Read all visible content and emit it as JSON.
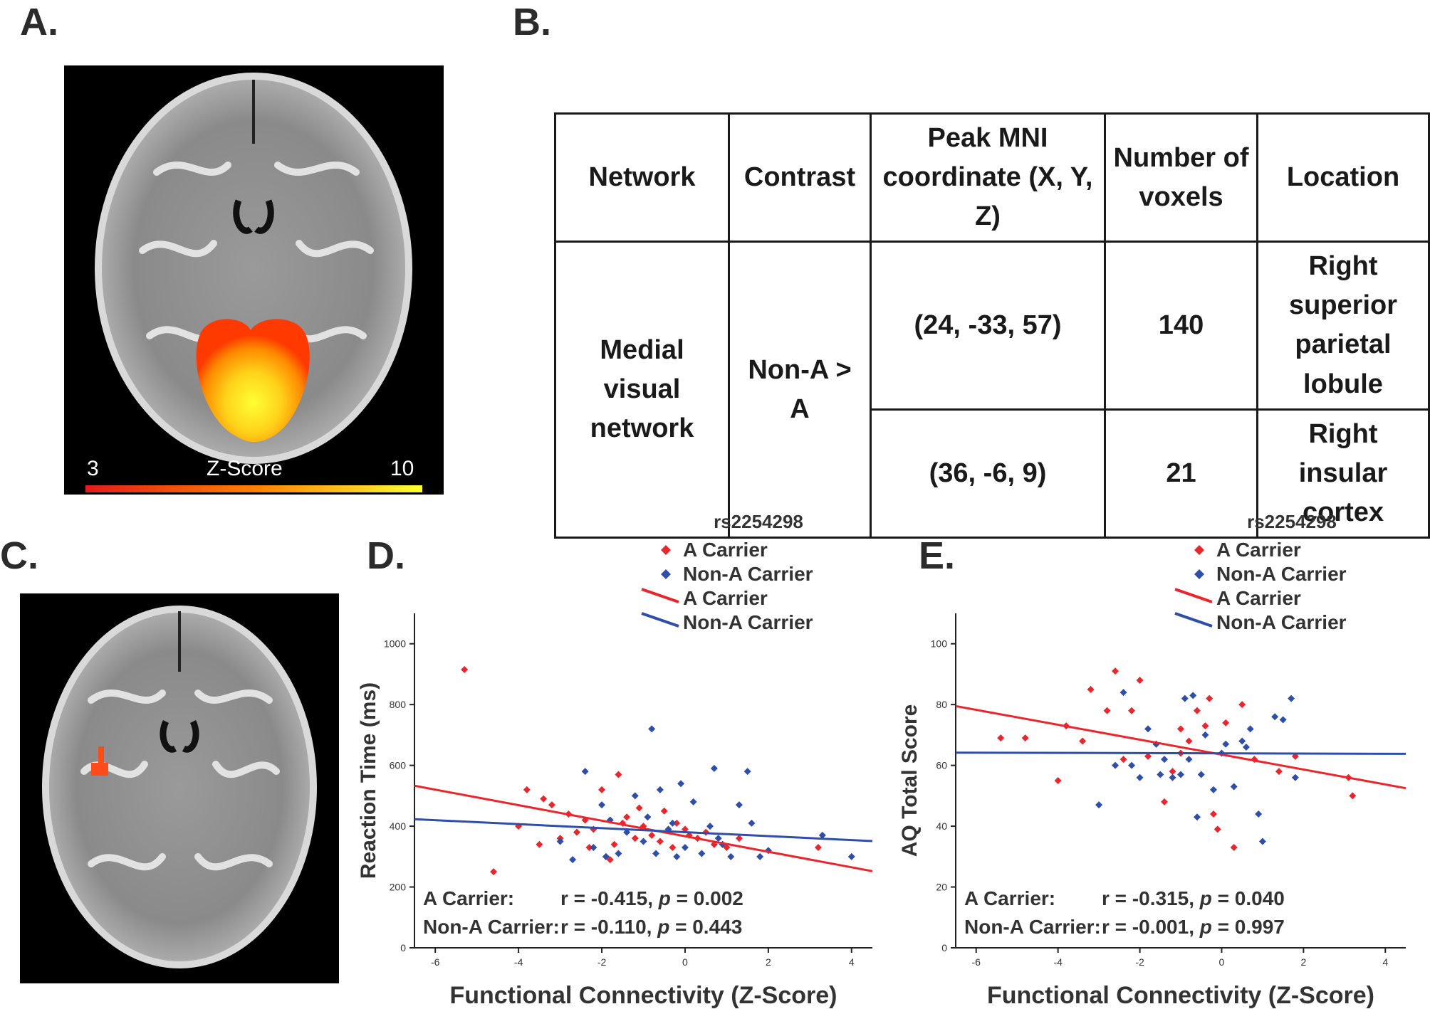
{
  "panels": {
    "a": "A.",
    "b": "B.",
    "c": "C.",
    "d": "D.",
    "e": "E."
  },
  "colorbar": {
    "min_label": "3",
    "max_label": "10",
    "title": "Z-Score",
    "colors": [
      "#e41a1c",
      "#ff7f00",
      "#ffff33"
    ]
  },
  "table": {
    "headers": [
      "Network",
      "Contrast",
      "Peak MNI coordinate (X, Y, Z)",
      "Number of voxels",
      "Location"
    ],
    "network": "Medial visual network",
    "contrast": "Non-A > A",
    "rows": [
      {
        "coord": "(24, -33, 57)",
        "voxels": "140",
        "location": "Right superior parietal lobule"
      },
      {
        "coord": "(36, -6, 9)",
        "voxels": "21",
        "location": "Right insular cortex"
      }
    ]
  },
  "colors": {
    "a_carrier": "#e8262d",
    "non_a_carrier": "#2f4ea8"
  },
  "chart_data": [
    {
      "type": "scatter",
      "panel": "D.",
      "xlabel": "Functional Connectivity (Z-Score)",
      "ylabel": "Reaction Time (ms)",
      "xlim": [
        -6.5,
        4.5
      ],
      "ylim": [
        0,
        1100
      ],
      "xticks": [
        -6,
        -4,
        -2,
        0,
        2,
        4
      ],
      "yticks": [
        0,
        200,
        400,
        600,
        800,
        1000
      ],
      "legend_title": "rs2254298",
      "legend": [
        "A Carrier",
        "Non-A Carrier",
        "A Carrier",
        "Non-A Carrier"
      ],
      "series": [
        {
          "name": "A Carrier",
          "points": [
            [
              -5.3,
              915
            ],
            [
              -4.6,
              250
            ],
            [
              -4.0,
              400
            ],
            [
              -3.8,
              520
            ],
            [
              -3.5,
              340
            ],
            [
              -3.4,
              490
            ],
            [
              -3.2,
              470
            ],
            [
              -3.0,
              360
            ],
            [
              -2.8,
              440
            ],
            [
              -2.6,
              380
            ],
            [
              -2.4,
              420
            ],
            [
              -2.2,
              390
            ],
            [
              -2.0,
              520
            ],
            [
              -1.9,
              300
            ],
            [
              -1.7,
              340
            ],
            [
              -1.6,
              570
            ],
            [
              -1.5,
              410
            ],
            [
              -1.4,
              430
            ],
            [
              -1.2,
              360
            ],
            [
              -1.1,
              460
            ],
            [
              -1.0,
              400
            ],
            [
              -0.8,
              370
            ],
            [
              -0.6,
              350
            ],
            [
              -0.5,
              450
            ],
            [
              -0.3,
              330
            ],
            [
              -0.2,
              410
            ],
            [
              0.0,
              390
            ],
            [
              0.1,
              370
            ],
            [
              0.3,
              360
            ],
            [
              0.5,
              380
            ],
            [
              0.7,
              340
            ],
            [
              1.0,
              330
            ],
            [
              1.3,
              360
            ],
            [
              3.2,
              330
            ],
            [
              -1.8,
              290
            ],
            [
              -2.3,
              330
            ]
          ],
          "fit": [
            [
              -6.5,
              533
            ],
            [
              4.5,
              252
            ]
          ]
        },
        {
          "name": "Non-A Carrier",
          "points": [
            [
              -3.0,
              350
            ],
            [
              -2.7,
              290
            ],
            [
              -2.4,
              580
            ],
            [
              -2.2,
              330
            ],
            [
              -2.0,
              470
            ],
            [
              -1.8,
              420
            ],
            [
              -1.6,
              310
            ],
            [
              -1.4,
              380
            ],
            [
              -1.2,
              500
            ],
            [
              -1.0,
              350
            ],
            [
              -0.9,
              430
            ],
            [
              -0.8,
              720
            ],
            [
              -0.7,
              310
            ],
            [
              -0.6,
              520
            ],
            [
              -0.4,
              390
            ],
            [
              -0.3,
              410
            ],
            [
              -0.1,
              540
            ],
            [
              0.0,
              330
            ],
            [
              0.2,
              480
            ],
            [
              0.4,
              310
            ],
            [
              0.6,
              400
            ],
            [
              0.7,
              590
            ],
            [
              0.9,
              340
            ],
            [
              1.1,
              300
            ],
            [
              1.3,
              470
            ],
            [
              1.5,
              580
            ],
            [
              1.6,
              410
            ],
            [
              1.8,
              300
            ],
            [
              2.0,
              320
            ],
            [
              3.3,
              370
            ],
            [
              4.0,
              300
            ],
            [
              -1.9,
              300
            ],
            [
              0.8,
              360
            ],
            [
              -0.2,
              300
            ]
          ],
          "fit": [
            [
              -6.5,
              423
            ],
            [
              4.5,
              351
            ]
          ]
        }
      ],
      "stats": [
        {
          "label": "A Carrier:",
          "r": "r = -0.415, ",
          "p_letter": "p",
          "p_value": " = 0.002"
        },
        {
          "label": "Non-A Carrier:",
          "r": "r = -0.110, ",
          "p_letter": "p",
          "p_value": " = 0.443"
        }
      ]
    },
    {
      "type": "scatter",
      "panel": "E.",
      "xlabel": "Functional Connectivity (Z-Score)",
      "ylabel": "AQ Total Score",
      "xlim": [
        -6.5,
        4.5
      ],
      "ylim": [
        0,
        110
      ],
      "xticks": [
        -6,
        -4,
        -2,
        0,
        2,
        4
      ],
      "yticks": [
        0,
        20,
        40,
        60,
        80,
        100
      ],
      "legend_title": "rs2254298",
      "legend": [
        "A Carrier",
        "Non-A Carrier",
        "A Carrier",
        "Non-A Carrier"
      ],
      "series": [
        {
          "name": "A Carrier",
          "points": [
            [
              -5.4,
              69
            ],
            [
              -4.8,
              69
            ],
            [
              -4.0,
              55
            ],
            [
              -3.8,
              73
            ],
            [
              -3.4,
              68
            ],
            [
              -3.2,
              85
            ],
            [
              -2.6,
              91
            ],
            [
              -2.4,
              62
            ],
            [
              -2.2,
              78
            ],
            [
              -2.0,
              88
            ],
            [
              -1.8,
              63
            ],
            [
              -1.6,
              67
            ],
            [
              -1.4,
              48
            ],
            [
              -1.2,
              58
            ],
            [
              -1.0,
              64
            ],
            [
              -0.8,
              68
            ],
            [
              -0.6,
              78
            ],
            [
              -0.4,
              73
            ],
            [
              -0.3,
              82
            ],
            [
              -0.2,
              44
            ],
            [
              -0.1,
              39
            ],
            [
              0.1,
              74
            ],
            [
              0.3,
              33
            ],
            [
              0.5,
              80
            ],
            [
              0.8,
              62
            ],
            [
              1.4,
              58
            ],
            [
              1.8,
              63
            ],
            [
              3.1,
              56
            ],
            [
              3.2,
              50
            ],
            [
              -2.8,
              78
            ],
            [
              -1.0,
              72
            ]
          ],
          "fit": [
            [
              -6.5,
              79.5
            ],
            [
              4.5,
              52.5
            ]
          ]
        },
        {
          "name": "Non-A Carrier",
          "points": [
            [
              -3.0,
              47
            ],
            [
              -2.6,
              60
            ],
            [
              -2.4,
              84
            ],
            [
              -2.2,
              60
            ],
            [
              -2.0,
              56
            ],
            [
              -1.8,
              72
            ],
            [
              -1.6,
              67
            ],
            [
              -1.4,
              62
            ],
            [
              -1.2,
              56
            ],
            [
              -1.0,
              57
            ],
            [
              -0.9,
              82
            ],
            [
              -0.8,
              62
            ],
            [
              -0.7,
              83
            ],
            [
              -0.6,
              43
            ],
            [
              -0.4,
              70
            ],
            [
              -0.2,
              52
            ],
            [
              0.0,
              64
            ],
            [
              0.1,
              67
            ],
            [
              0.3,
              53
            ],
            [
              0.5,
              68
            ],
            [
              0.7,
              72
            ],
            [
              0.9,
              44
            ],
            [
              1.0,
              35
            ],
            [
              1.3,
              76
            ],
            [
              1.5,
              75
            ],
            [
              1.7,
              82
            ],
            [
              1.8,
              56
            ],
            [
              -0.5,
              57
            ],
            [
              -1.5,
              57
            ],
            [
              0.6,
              66
            ]
          ],
          "fit": [
            [
              -6.5,
              64.2
            ],
            [
              4.5,
              63.8
            ]
          ]
        }
      ],
      "stats": [
        {
          "label": "A Carrier:",
          "r": "r = -0.315, ",
          "p_letter": "p",
          "p_value": " = 0.040"
        },
        {
          "label": "Non-A Carrier:",
          "r": "r = -0.001, ",
          "p_letter": "p",
          "p_value": " = 0.997"
        }
      ]
    }
  ]
}
